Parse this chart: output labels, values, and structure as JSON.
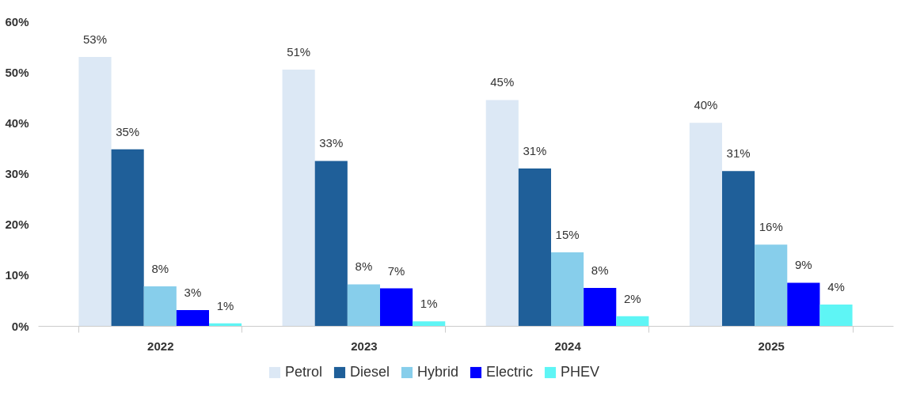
{
  "chart_data": {
    "type": "bar",
    "categories": [
      "2022",
      "2023",
      "2024",
      "2025"
    ],
    "series": [
      {
        "name": "Petrol",
        "color": "#dce8f5",
        "values": [
          53.0,
          50.5,
          44.5,
          40.0
        ],
        "value_labels": [
          "53%",
          "51%",
          "45%",
          "40%"
        ]
      },
      {
        "name": "Diesel",
        "color": "#1f5f99",
        "values": [
          34.8,
          32.5,
          31.0,
          30.5
        ],
        "value_labels": [
          "35%",
          "33%",
          "31%",
          "31%"
        ]
      },
      {
        "name": "Hybrid",
        "color": "#87ceeb",
        "values": [
          7.8,
          8.2,
          14.5,
          16.0
        ],
        "value_labels": [
          "8%",
          "8%",
          "15%",
          "16%"
        ]
      },
      {
        "name": "Electric",
        "color": "#0000ff",
        "values": [
          3.1,
          7.4,
          7.5,
          8.5
        ],
        "value_labels": [
          "3%",
          "7%",
          "8%",
          "9%"
        ]
      },
      {
        "name": "PHEV",
        "color": "#5ef5f5",
        "values": [
          0.5,
          0.9,
          1.9,
          4.2
        ],
        "value_labels": [
          "1%",
          "1%",
          "2%",
          "4%"
        ]
      }
    ],
    "ylim": [
      0,
      60
    ],
    "yticks": [
      {
        "value": 0,
        "label": "0%"
      },
      {
        "value": 10,
        "label": "10%"
      },
      {
        "value": 20,
        "label": "20%"
      },
      {
        "value": 30,
        "label": "30%"
      },
      {
        "value": 40,
        "label": "40%"
      },
      {
        "value": 50,
        "label": "50%"
      },
      {
        "value": 60,
        "label": "60%"
      }
    ],
    "grid": false,
    "legend": "bottom"
  }
}
